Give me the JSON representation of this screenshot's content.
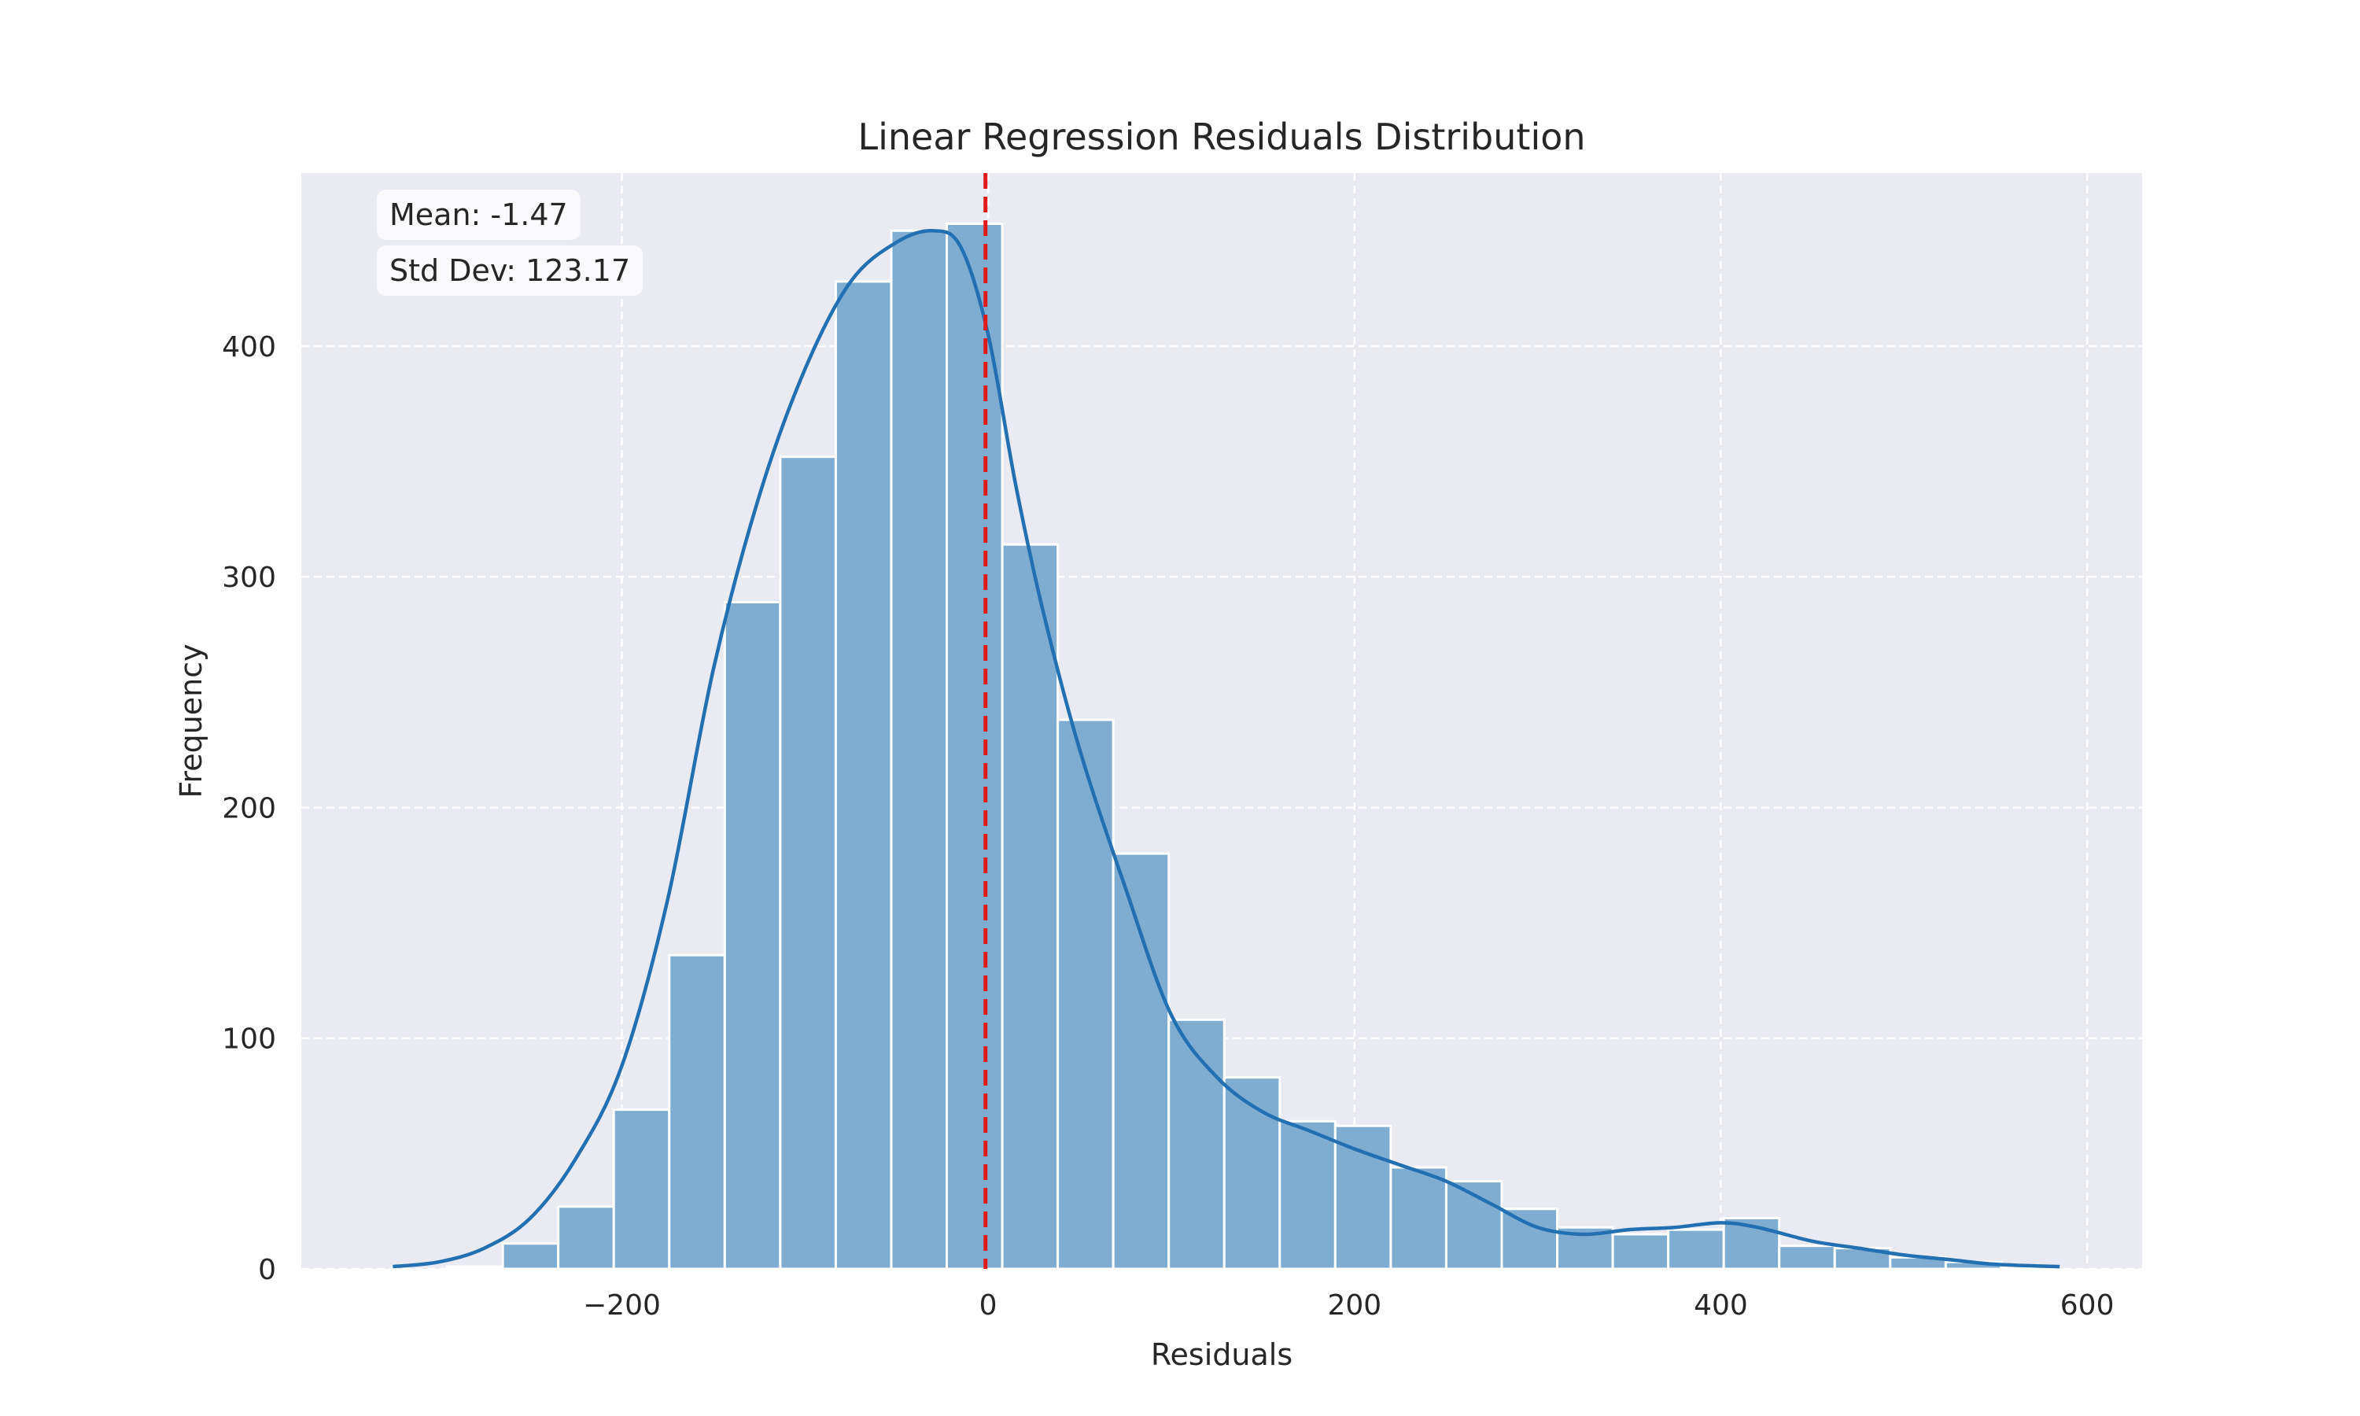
{
  "chart_data": {
    "type": "bar",
    "title": "Linear Regression Residuals Distribution",
    "xlabel": "Residuals",
    "ylabel": "Frequency",
    "xlim": [
      -375,
      630
    ],
    "ylim": [
      0,
      475
    ],
    "x_ticks": [
      -200,
      0,
      200,
      400,
      600
    ],
    "x_tick_labels": [
      "−200",
      "0",
      "200",
      "400",
      "600"
    ],
    "y_ticks": [
      0,
      100,
      200,
      300,
      400
    ],
    "y_tick_labels": [
      "0",
      "100",
      "200",
      "300",
      "400"
    ],
    "grid": true,
    "bin_width": 30.3,
    "bins": [
      {
        "x0": -295.3,
        "x1": -265.0,
        "count": 1
      },
      {
        "x0": -265.0,
        "x1": -234.7,
        "count": 11
      },
      {
        "x0": -234.7,
        "x1": -204.4,
        "count": 27
      },
      {
        "x0": -204.4,
        "x1": -174.1,
        "count": 69
      },
      {
        "x0": -174.1,
        "x1": -143.8,
        "count": 136
      },
      {
        "x0": -143.8,
        "x1": -113.5,
        "count": 289
      },
      {
        "x0": -113.5,
        "x1": -83.2,
        "count": 352
      },
      {
        "x0": -83.2,
        "x1": -52.9,
        "count": 428
      },
      {
        "x0": -52.9,
        "x1": -22.6,
        "count": 450
      },
      {
        "x0": -22.6,
        "x1": 7.7,
        "count": 453
      },
      {
        "x0": 7.7,
        "x1": 38.0,
        "count": 314
      },
      {
        "x0": 38.0,
        "x1": 68.3,
        "count": 238
      },
      {
        "x0": 68.3,
        "x1": 98.6,
        "count": 180
      },
      {
        "x0": 98.6,
        "x1": 128.9,
        "count": 108
      },
      {
        "x0": 128.9,
        "x1": 159.2,
        "count": 83
      },
      {
        "x0": 159.2,
        "x1": 189.5,
        "count": 64
      },
      {
        "x0": 189.5,
        "x1": 219.8,
        "count": 62
      },
      {
        "x0": 219.8,
        "x1": 250.1,
        "count": 44
      },
      {
        "x0": 250.1,
        "x1": 280.4,
        "count": 38
      },
      {
        "x0": 280.4,
        "x1": 310.7,
        "count": 26
      },
      {
        "x0": 310.7,
        "x1": 341.0,
        "count": 18
      },
      {
        "x0": 341.0,
        "x1": 371.3,
        "count": 15
      },
      {
        "x0": 371.3,
        "x1": 401.6,
        "count": 17
      },
      {
        "x0": 401.6,
        "x1": 431.9,
        "count": 22
      },
      {
        "x0": 431.9,
        "x1": 462.2,
        "count": 10
      },
      {
        "x0": 462.2,
        "x1": 492.5,
        "count": 9
      },
      {
        "x0": 492.5,
        "x1": 522.8,
        "count": 5
      },
      {
        "x0": 522.8,
        "x1": 553.1,
        "count": 3
      },
      {
        "x0": 553.1,
        "x1": 583.4,
        "count": 1
      }
    ],
    "kde": {
      "x": [
        -325,
        -300,
        -275,
        -250,
        -225,
        -200,
        -175,
        -150,
        -125,
        -100,
        -75,
        -50,
        -30,
        -15,
        0,
        15,
        30,
        50,
        75,
        100,
        125,
        150,
        175,
        200,
        225,
        250,
        275,
        300,
        325,
        350,
        375,
        400,
        420,
        450,
        475,
        500,
        525,
        550,
        585
      ],
      "y": [
        1,
        3,
        9,
        22,
        48,
        88,
        160,
        260,
        335,
        390,
        428,
        445,
        450,
        443,
        405,
        340,
        285,
        225,
        165,
        110,
        83,
        68,
        60,
        52,
        45,
        38,
        28,
        18,
        15,
        17,
        18,
        20,
        18,
        12,
        9,
        6,
        4,
        2,
        1
      ]
    },
    "mean_line": {
      "x": -1.47
    },
    "stats": {
      "mean_label": "Mean: -1.47",
      "std_label": "Std Dev: 123.17"
    },
    "colors": {
      "bar_fill": "#7fadd2",
      "bar_edge": "#ffffff",
      "kde_line": "#2270b2",
      "mean_line": "#e01919",
      "plot_background": "#eaeaf2",
      "grid": "#ffffff",
      "stat_box": "#fafafc"
    }
  }
}
